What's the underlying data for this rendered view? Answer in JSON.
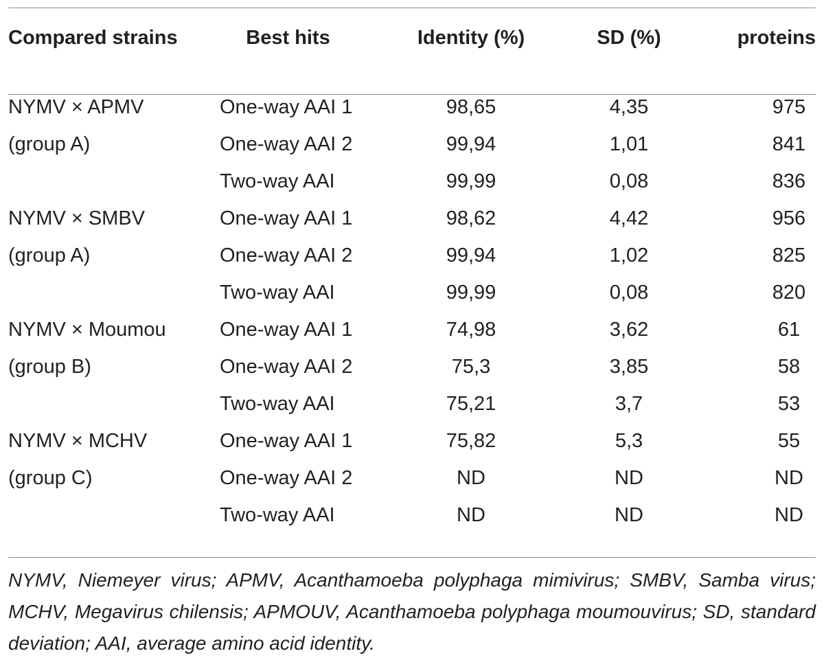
{
  "table": {
    "headers": {
      "strains": "Compared strains",
      "hits": "Best hits",
      "identity": "Identity (%)",
      "sd": "SD (%)",
      "proteins": "proteins"
    },
    "rows": [
      {
        "strain": "NYMV × APMV",
        "hit": "One-way AAI 1",
        "identity": "98,65",
        "sd": "4,35",
        "proteins": "975"
      },
      {
        "strain": "(group A)",
        "hit": "One-way AAI 2",
        "identity": "99,94",
        "sd": "1,01",
        "proteins": "841"
      },
      {
        "strain": "",
        "hit": "Two-way AAI",
        "identity": "99,99",
        "sd": "0,08",
        "proteins": "836"
      },
      {
        "strain": "NYMV × SMBV",
        "hit": "One-way AAI 1",
        "identity": "98,62",
        "sd": "4,42",
        "proteins": "956"
      },
      {
        "strain": "(group A)",
        "hit": "One-way AAI 2",
        "identity": "99,94",
        "sd": "1,02",
        "proteins": "825"
      },
      {
        "strain": "",
        "hit": "Two-way AAI",
        "identity": "99,99",
        "sd": "0,08",
        "proteins": "820"
      },
      {
        "strain": "NYMV × Moumou",
        "hit": "One-way AAI 1",
        "identity": "74,98",
        "sd": "3,62",
        "proteins": "61"
      },
      {
        "strain": "(group B)",
        "hit": "One-way AAI 2",
        "identity": "75,3",
        "sd": "3,85",
        "proteins": "58"
      },
      {
        "strain": "",
        "hit": "Two-way AAI",
        "identity": "75,21",
        "sd": "3,7",
        "proteins": "53"
      },
      {
        "strain": "NYMV × MCHV",
        "hit": "One-way AAI 1",
        "identity": "75,82",
        "sd": "5,3",
        "proteins": "55"
      },
      {
        "strain": "(group C)",
        "hit": "One-way AAI 2",
        "identity": "ND",
        "sd": "ND",
        "proteins": "ND"
      },
      {
        "strain": "",
        "hit": "Two-way AAI",
        "identity": "ND",
        "sd": "ND",
        "proteins": "ND"
      }
    ]
  },
  "footnote": "NYMV, Niemeyer virus; APMV, Acanthamoeba polyphaga mimivirus; SMBV, Samba virus; MCHV, Megavirus chilensis; APMOUV, Acanthamoeba polyphaga moumouvirus; SD, standard deviation; AAI, average amino acid identity."
}
